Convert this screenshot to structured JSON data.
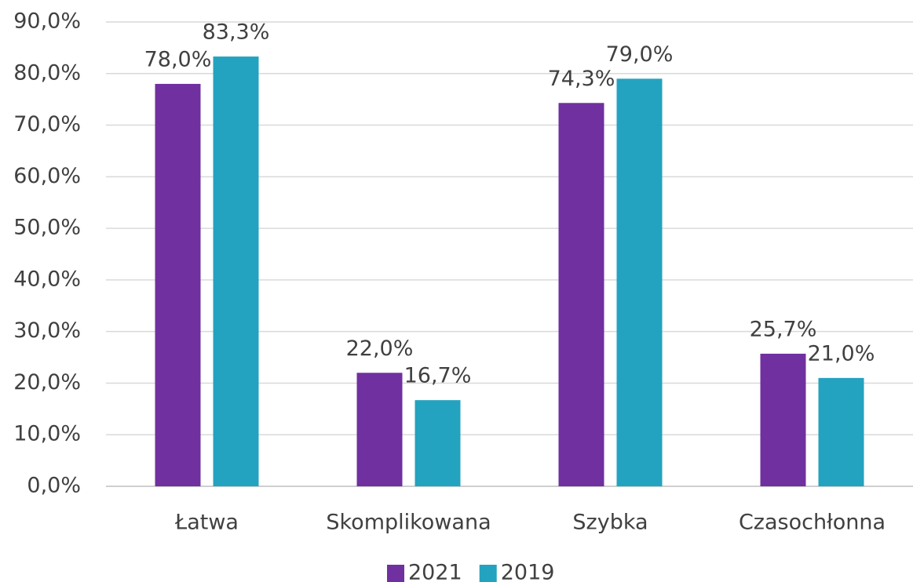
{
  "chart_data": {
    "type": "bar",
    "categories": [
      "Łatwa",
      "Skomplikowana",
      "Szybka",
      "Czasochłonna"
    ],
    "series": [
      {
        "name": "2021",
        "color": "#7030a0",
        "values": [
          78.0,
          22.0,
          74.3,
          25.7
        ],
        "value_labels": [
          "78,0%",
          "22,0%",
          "74,3%",
          "25,7%"
        ]
      },
      {
        "name": "2019",
        "color": "#23a3bf",
        "values": [
          83.3,
          16.7,
          79.0,
          21.0
        ],
        "value_labels": [
          "83,3%",
          "16,7%",
          "79,0%",
          "21,0%"
        ]
      }
    ],
    "ylim": [
      0,
      90
    ],
    "yticks": [
      {
        "value": 0,
        "label": "0,0%"
      },
      {
        "value": 10,
        "label": "10,0%"
      },
      {
        "value": 20,
        "label": "20,0%"
      },
      {
        "value": 30,
        "label": "30,0%"
      },
      {
        "value": 40,
        "label": "40,0%"
      },
      {
        "value": 50,
        "label": "50,0%"
      },
      {
        "value": 60,
        "label": "60,0%"
      },
      {
        "value": 70,
        "label": "70,0%"
      },
      {
        "value": 80,
        "label": "80,0%"
      },
      {
        "value": 90,
        "label": "90,0%"
      }
    ],
    "grid": true,
    "legend": "bottom"
  }
}
